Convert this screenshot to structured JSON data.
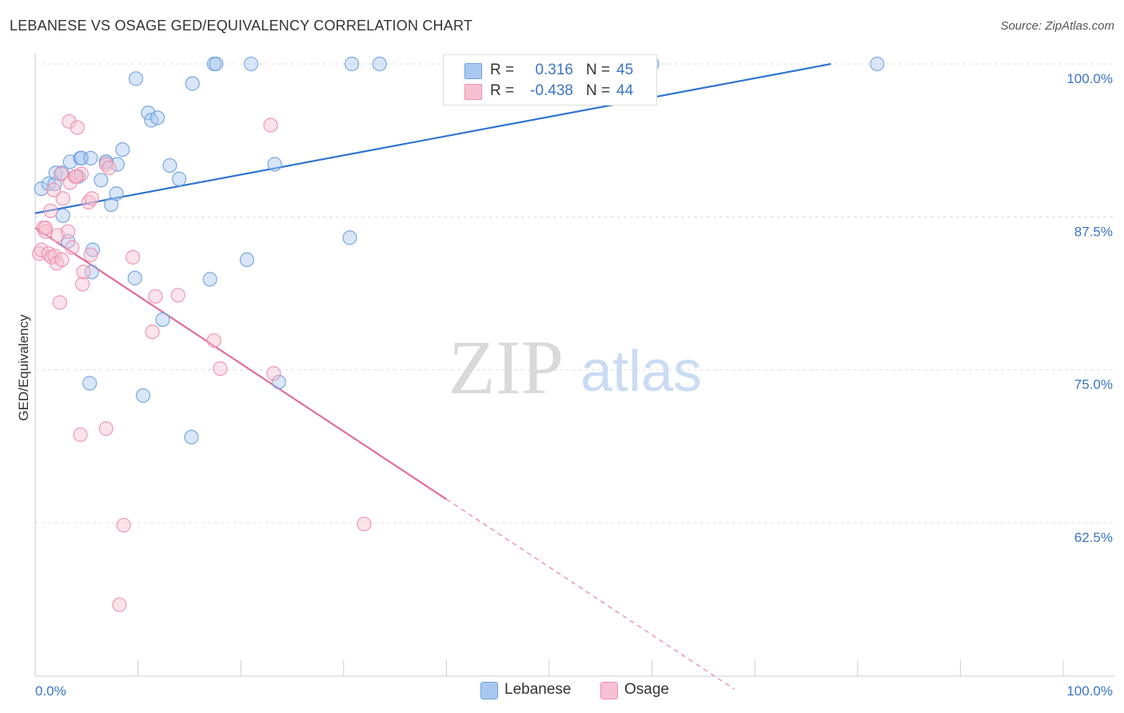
{
  "header": {
    "title": "LEBANESE VS OSAGE GED/EQUIVALENCY CORRELATION CHART",
    "source": "Source: ZipAtlas.com"
  },
  "watermark": {
    "zip": "ZIP",
    "atlas": "atlas"
  },
  "legend": {
    "rows": [
      {
        "r_label": "R =",
        "r_value": "0.316",
        "n_label": "N =",
        "n_value": "45",
        "color": "#a9c8f0",
        "border": "#6f9fe0"
      },
      {
        "r_label": "R =",
        "r_value": "-0.438",
        "n_label": "N =",
        "n_value": "44",
        "color": "#f7c1d1",
        "border": "#ec8fac"
      }
    ]
  },
  "bottom_legend": [
    {
      "label": "Lebanese",
      "color": "#a9c8f0",
      "border": "#6f9fe0"
    },
    {
      "label": "Osage",
      "color": "#f7c1d1",
      "border": "#ec8fac"
    }
  ],
  "chart_data": {
    "type": "scatter",
    "title": "LEBANESE VS OSAGE GED/EQUIVALENCY CORRELATION CHART",
    "xlabel": "",
    "ylabel": "GED/Equivalency",
    "xlim": [
      0,
      100
    ],
    "ylim": [
      50.0,
      101.0
    ],
    "x_tick_labels": [
      "0.0%",
      "100.0%"
    ],
    "y_ticks": [
      62.5,
      75.0,
      87.5,
      100.0
    ],
    "y_tick_labels": [
      "62.5%",
      "75.0%",
      "87.5%",
      "100.0%"
    ],
    "grid": true,
    "series": [
      {
        "name": "Lebanese",
        "color": "#6f9fe0",
        "fill": "#a9c8f0",
        "line_color": "#2f74d0",
        "trend": {
          "x0": 0,
          "y0": 87.8,
          "x1": 77.4,
          "y1": 100.0,
          "dashed_from": null
        },
        "points": [
          [
            0.6,
            89.8
          ],
          [
            1.3,
            90.2
          ],
          [
            1.9,
            90.2
          ],
          [
            2.0,
            91.1
          ],
          [
            2.6,
            91.1
          ],
          [
            2.7,
            87.6
          ],
          [
            3.2,
            85.5
          ],
          [
            3.4,
            92.0
          ],
          [
            4.2,
            90.8
          ],
          [
            4.4,
            92.3
          ],
          [
            4.5,
            92.3
          ],
          [
            5.4,
            92.3
          ],
          [
            5.6,
            84.8
          ],
          [
            6.4,
            90.5
          ],
          [
            6.9,
            92.0
          ],
          [
            7.4,
            88.5
          ],
          [
            7.9,
            89.4
          ],
          [
            8.0,
            91.8
          ],
          [
            8.5,
            93.0
          ],
          [
            9.7,
            82.5
          ],
          [
            9.8,
            98.8
          ],
          [
            11.0,
            96.0
          ],
          [
            11.3,
            95.4
          ],
          [
            11.9,
            95.6
          ],
          [
            12.4,
            79.1
          ],
          [
            13.1,
            91.7
          ],
          [
            14.0,
            90.6
          ],
          [
            15.3,
            98.4
          ],
          [
            17.4,
            100.0
          ],
          [
            17.6,
            100.0
          ],
          [
            20.6,
            84.0
          ],
          [
            21.0,
            100.0
          ],
          [
            23.3,
            91.8
          ],
          [
            30.6,
            85.8
          ],
          [
            30.8,
            100.0
          ],
          [
            33.5,
            100.0
          ],
          [
            60.0,
            100.0
          ],
          [
            81.9,
            100.0
          ],
          [
            5.5,
            83.0
          ],
          [
            5.3,
            73.9
          ],
          [
            10.5,
            72.9
          ],
          [
            15.2,
            69.5
          ],
          [
            17.0,
            82.4
          ],
          [
            23.7,
            74.0
          ],
          [
            6.9,
            92.0
          ]
        ]
      },
      {
        "name": "Osage",
        "color": "#ec8fac",
        "fill": "#f7c1d1",
        "line_color": "#e16d97",
        "trend": {
          "x0": 0,
          "y0": 86.6,
          "x1": 68.0,
          "y1": 48.9,
          "dashed_from": 40.0
        },
        "points": [
          [
            0.4,
            84.5
          ],
          [
            0.6,
            84.8
          ],
          [
            0.8,
            86.6
          ],
          [
            1.0,
            86.3
          ],
          [
            1.3,
            84.5
          ],
          [
            1.5,
            88.0
          ],
          [
            1.6,
            84.2
          ],
          [
            1.8,
            89.7
          ],
          [
            1.9,
            84.3
          ],
          [
            2.1,
            83.7
          ],
          [
            2.2,
            86.0
          ],
          [
            2.4,
            80.5
          ],
          [
            2.6,
            84.0
          ],
          [
            2.7,
            89.0
          ],
          [
            3.2,
            86.3
          ],
          [
            3.4,
            90.3
          ],
          [
            3.6,
            85.0
          ],
          [
            3.3,
            95.3
          ],
          [
            3.9,
            90.8
          ],
          [
            4.1,
            94.8
          ],
          [
            4.4,
            69.7
          ],
          [
            4.5,
            91.0
          ],
          [
            4.6,
            82.0
          ],
          [
            4.7,
            83.0
          ],
          [
            5.2,
            88.7
          ],
          [
            5.4,
            84.4
          ],
          [
            5.5,
            89.0
          ],
          [
            6.9,
            70.2
          ],
          [
            6.9,
            91.8
          ],
          [
            7.2,
            91.5
          ],
          [
            8.2,
            55.8
          ],
          [
            8.6,
            62.3
          ],
          [
            9.5,
            84.2
          ],
          [
            11.4,
            78.1
          ],
          [
            11.7,
            81.0
          ],
          [
            13.9,
            81.1
          ],
          [
            17.4,
            77.4
          ],
          [
            18.0,
            75.1
          ],
          [
            22.9,
            95.0
          ],
          [
            23.2,
            74.7
          ],
          [
            32.0,
            62.4
          ],
          [
            1.0,
            86.6
          ],
          [
            2.5,
            91.0
          ],
          [
            4.0,
            90.8
          ]
        ]
      }
    ]
  }
}
